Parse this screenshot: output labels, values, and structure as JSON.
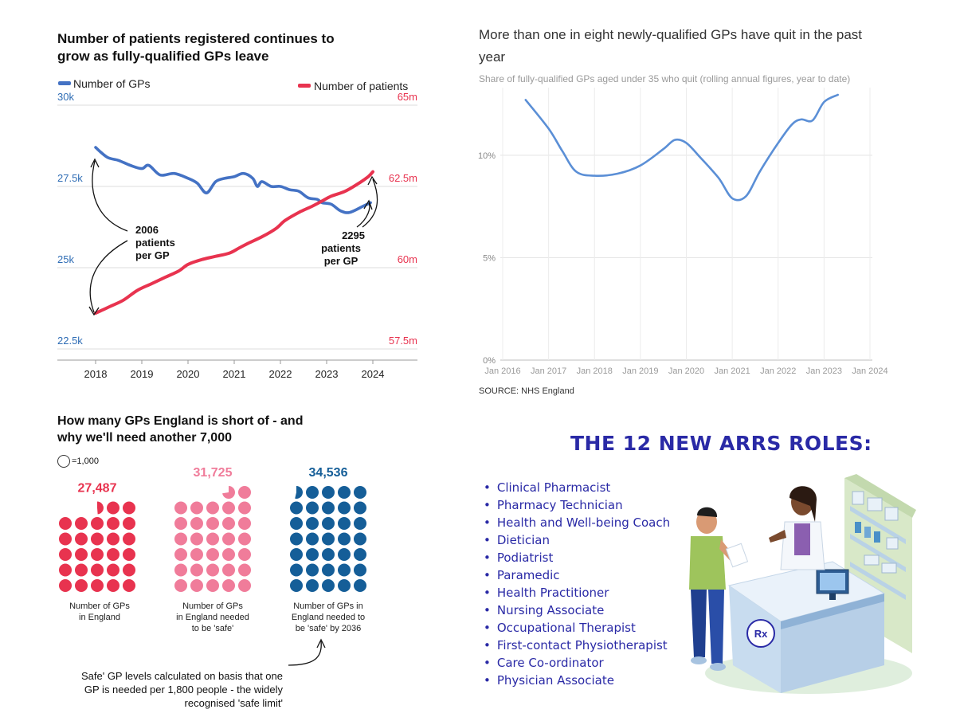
{
  "panel_gps": {
    "title_line1": "Number of patients registered continues to",
    "title_line2": "grow as fully-qualified GPs leave",
    "legend_gps": "Number of GPs",
    "legend_patients": "Number of patients",
    "left_ticks": [
      "30k",
      "27.5k",
      "25k",
      "22.5k"
    ],
    "right_ticks": [
      "65m",
      "62.5m",
      "60m",
      "57.5m"
    ],
    "years": [
      "2018",
      "2019",
      "2020",
      "2021",
      "2022",
      "2023",
      "2024"
    ],
    "annot_2006": [
      "2006",
      "patients",
      "per GP"
    ],
    "annot_2295": [
      "2295",
      "patients",
      "per GP"
    ]
  },
  "panel_quit": {
    "title_line1": "More than one in eight newly-qualified GPs have quit in the past",
    "title_line2": "year",
    "subtitle": "Share of fully-qualified GPs aged under 35 who quit (rolling annual figures, year to date)",
    "source": "SOURCE: NHS England",
    "yticks": [
      "10%",
      "5%",
      "0%"
    ],
    "xticks": [
      "Jan 2016",
      "Jan 2017",
      "Jan 2018",
      "Jan 2019",
      "Jan 2020",
      "Jan 2021",
      "Jan 2022",
      "Jan 2023",
      "Jan 2024"
    ]
  },
  "panel_short": {
    "title_line1": "How many GPs England is short of - and",
    "title_line2": "why we'll need another 7,000",
    "key_label": "=1,000",
    "groups": [
      {
        "value": "27,487",
        "caption": [
          "Number of GPs",
          "in England"
        ],
        "color": "#e8334f"
      },
      {
        "value": "31,725",
        "caption": [
          "Number of GPs",
          "in England needed",
          "to be 'safe'"
        ],
        "color": "#f07c9a"
      },
      {
        "value": "34,536",
        "caption": [
          "Number of GPs in",
          "England needed to",
          "be 'safe' by 2036"
        ],
        "color": "#155e98"
      }
    ],
    "note": [
      "Safe' GP levels calculated on basis that one",
      "GP is needed per 1,800 people - the widely",
      "recognised 'safe limit'"
    ]
  },
  "panel_arrs": {
    "title": "THE 12 NEW ARRS ROLES:",
    "roles": [
      "Clinical Pharmacist",
      "Pharmacy Technician",
      "Health and Well-being Coach",
      "Dietician",
      "Podiatrist",
      "Paramedic",
      "Health Practitioner",
      "Nursing Associate",
      "Occupational Therapist",
      "First-contact Physiotherapist",
      "Care Co-ordinator",
      "Physician Associate"
    ]
  },
  "colors": {
    "gps": "#4472c4",
    "patients": "#e8334f",
    "quit_line": "#5b8fd6",
    "arrs": "#2a2aa6"
  },
  "chart_data": [
    {
      "type": "line",
      "title": "Number of patients registered continues to grow as fully-qualified GPs leave",
      "series": [
        {
          "name": "Number of GPs",
          "axis": "left",
          "x": [
            2018.0,
            2018.25,
            2018.5,
            2018.75,
            2019.0,
            2019.15,
            2019.4,
            2019.7,
            2020.0,
            2020.2,
            2020.4,
            2020.6,
            2020.8,
            2021.0,
            2021.2,
            2021.4,
            2021.5,
            2021.6,
            2021.8,
            2022.0,
            2022.2,
            2022.4,
            2022.6,
            2022.8,
            2022.9,
            2023.1,
            2023.3,
            2023.5,
            2023.8,
            2023.95
          ],
          "values": [
            28.7,
            28.4,
            28.3,
            28.15,
            28.05,
            28.15,
            27.85,
            27.9,
            27.75,
            27.6,
            27.3,
            27.65,
            27.75,
            27.8,
            27.9,
            27.75,
            27.5,
            27.65,
            27.5,
            27.5,
            27.4,
            27.35,
            27.15,
            27.1,
            27.0,
            26.95,
            26.75,
            26.7,
            26.9,
            27.0
          ]
        },
        {
          "name": "Number of patients",
          "axis": "right",
          "x": [
            2018.0,
            2018.3,
            2018.6,
            2018.9,
            2019.2,
            2019.5,
            2019.8,
            2020.0,
            2020.3,
            2020.6,
            2020.9,
            2021.1,
            2021.3,
            2021.6,
            2021.9,
            2022.1,
            2022.4,
            2022.7,
            2022.9,
            2023.1,
            2023.4,
            2023.7,
            2023.9,
            2024.0
          ],
          "values": [
            58.6,
            58.8,
            59.0,
            59.3,
            59.5,
            59.7,
            59.9,
            60.1,
            60.25,
            60.35,
            60.45,
            60.6,
            60.75,
            60.95,
            61.2,
            61.45,
            61.7,
            61.9,
            62.05,
            62.2,
            62.35,
            62.6,
            62.8,
            62.95
          ]
        }
      ],
      "ylim_left": [
        22.5,
        30
      ],
      "ylim_right": [
        57.5,
        65
      ],
      "xlabel": "",
      "ylabel": ""
    },
    {
      "type": "line",
      "title": "More than one in eight newly-qualified GPs have quit in the past year",
      "subtitle": "Share of fully-qualified GPs aged under 35 who quit (rolling annual figures, year to date)",
      "x": [
        2016.5,
        2017.0,
        2017.3,
        2017.6,
        2018.0,
        2018.5,
        2019.0,
        2019.5,
        2019.75,
        2020.0,
        2020.3,
        2020.7,
        2021.0,
        2021.3,
        2021.6,
        2022.0,
        2022.3,
        2022.5,
        2022.75,
        2023.0,
        2023.3
      ],
      "values": [
        12.7,
        11.3,
        10.2,
        9.2,
        9.0,
        9.1,
        9.5,
        10.3,
        10.75,
        10.6,
        9.9,
        8.9,
        7.9,
        8.0,
        9.2,
        10.6,
        11.5,
        11.75,
        11.7,
        12.6,
        12.95
      ],
      "xticks": [
        "Jan 2016",
        "Jan 2017",
        "Jan 2018",
        "Jan 2019",
        "Jan 2020",
        "Jan 2021",
        "Jan 2022",
        "Jan 2023",
        "Jan 2024"
      ],
      "ylim": [
        0,
        13
      ],
      "unit": "%",
      "source": "SOURCE: NHS England"
    },
    {
      "type": "bar",
      "title": "How many GPs England is short of - and why we'll need another 7,000",
      "categories": [
        "Number of GPs in England",
        "Number of GPs in England needed to be 'safe'",
        "Number of GPs in England needed to be 'safe' by 2036"
      ],
      "values": [
        27487,
        31725,
        34536
      ],
      "unit_per_dot": 1000
    }
  ]
}
